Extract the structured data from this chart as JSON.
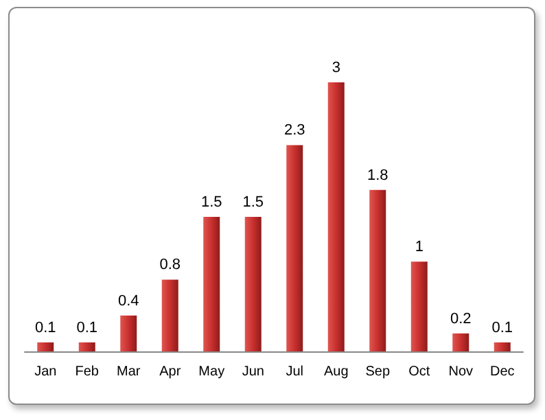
{
  "chart_data": {
    "type": "bar",
    "categories": [
      "Jan",
      "Feb",
      "Mar",
      "Apr",
      "May",
      "Jun",
      "Jul",
      "Aug",
      "Sep",
      "Oct",
      "Nov",
      "Dec"
    ],
    "values": [
      0.1,
      0.1,
      0.4,
      0.8,
      1.5,
      1.5,
      2.3,
      3,
      1.8,
      1,
      0.2,
      0.1
    ],
    "color": "#c8302e",
    "data_labels": true
  }
}
